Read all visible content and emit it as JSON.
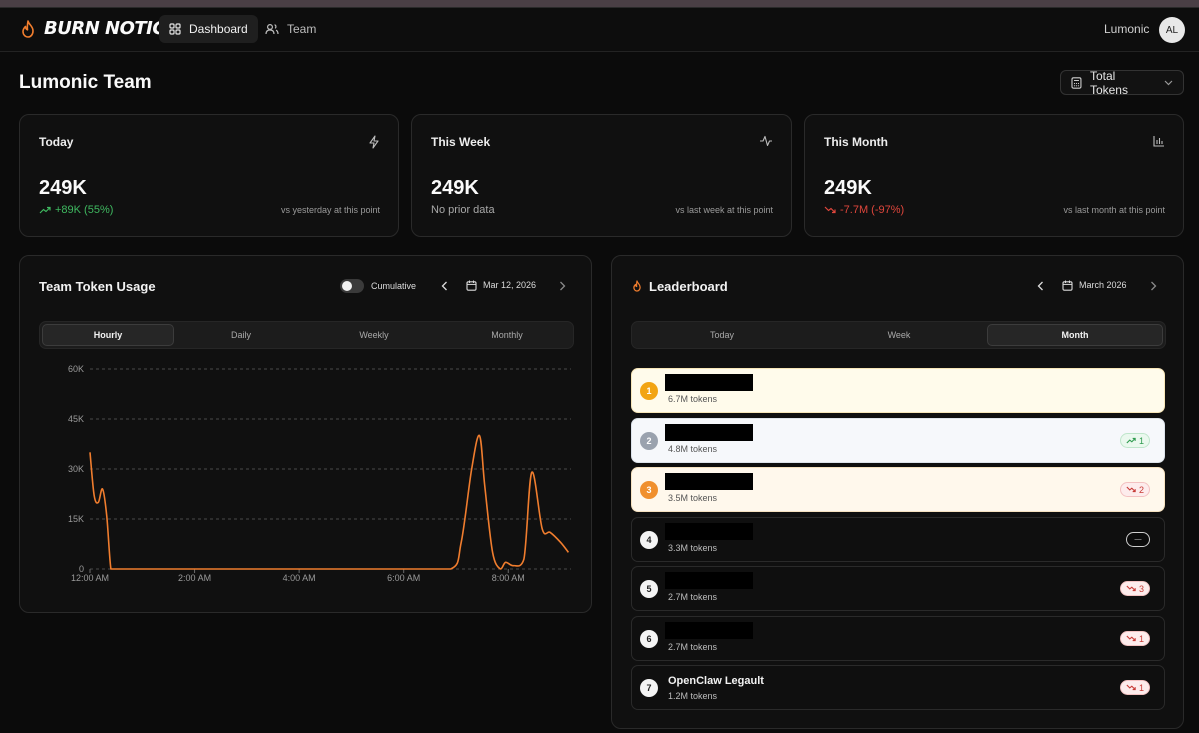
{
  "app": {
    "name": "BURN NOTICE",
    "accent": "#f07d2e"
  },
  "nav": {
    "tabs": [
      {
        "label": "Dashboard",
        "icon": "grid-icon",
        "active": true
      },
      {
        "label": "Team",
        "icon": "users-icon",
        "active": false
      }
    ],
    "user": {
      "name": "Lumonic",
      "initials": "AL"
    }
  },
  "page": {
    "title": "Lumonic Team"
  },
  "metric_select": {
    "value": "Total Tokens"
  },
  "stats": [
    {
      "label": "Today",
      "icon": "bolt-icon",
      "value": "249K",
      "delta": "+89K (55%)",
      "trend": "up",
      "note": "vs yesterday at this point"
    },
    {
      "label": "This Week",
      "icon": "activity-icon",
      "value": "249K",
      "delta": "No prior data",
      "trend": "none",
      "note": "vs last week at this point"
    },
    {
      "label": "This Month",
      "icon": "bar-chart-icon",
      "value": "249K",
      "delta": "-7.7M (-97%)",
      "trend": "down",
      "note": "vs last month at this point"
    }
  ],
  "usage": {
    "title": "Team Token Usage",
    "cumulative_label": "Cumulative",
    "cumulative_on": false,
    "date": "Mar 12, 2026",
    "tabs": [
      "Hourly",
      "Daily",
      "Weekly",
      "Monthly"
    ],
    "active_tab": "Hourly"
  },
  "chart_data": {
    "type": "line",
    "series_color": "#f07d2e",
    "grid": true,
    "x_unit": "hours since 12:00 AM",
    "xlim": [
      0,
      9.2
    ],
    "ylim": [
      0,
      60000
    ],
    "y_ticks": [
      0,
      15000,
      30000,
      45000,
      60000
    ],
    "y_tick_labels": [
      "0",
      "15K",
      "30K",
      "45K",
      "60K"
    ],
    "x_ticks": [
      0,
      2,
      4,
      6,
      8
    ],
    "x_tick_labels": [
      "12:00 AM",
      "2:00 AM",
      "4:00 AM",
      "6:00 AM",
      "8:00 AM"
    ],
    "x": [
      0,
      0.08,
      0.16,
      0.24,
      0.32,
      0.4,
      0.48,
      0.6,
      1,
      2,
      3,
      4,
      5,
      6,
      6.9,
      7.1,
      7.3,
      7.45,
      7.55,
      7.7,
      7.85,
      7.95,
      8.1,
      8.3,
      8.45,
      8.65,
      8.8,
      9.0,
      9.15
    ],
    "y": [
      35000,
      22000,
      20000,
      24000,
      16000,
      0,
      0,
      0,
      0,
      0,
      0,
      0,
      0,
      0,
      0,
      8000,
      30000,
      40000,
      25000,
      5000,
      0,
      2000,
      1000,
      3000,
      29000,
      12000,
      11000,
      8000,
      5000
    ]
  },
  "leaderboard": {
    "title": "Leaderboard",
    "period_label": "March 2026",
    "tabs": [
      "Today",
      "Week",
      "Month"
    ],
    "active_tab": "Month",
    "rows": [
      {
        "rank": "1",
        "name": "",
        "tokens": "6.7M tokens",
        "change": "",
        "direction": "none",
        "style": "gold"
      },
      {
        "rank": "2",
        "name": "",
        "tokens": "4.8M tokens",
        "change": "1",
        "direction": "up",
        "style": "silver"
      },
      {
        "rank": "3",
        "name": "",
        "tokens": "3.5M tokens",
        "change": "2",
        "direction": "down",
        "style": "bronze"
      },
      {
        "rank": "4",
        "name": "",
        "tokens": "3.3M tokens",
        "change": "—",
        "direction": "same",
        "style": "dark"
      },
      {
        "rank": "5",
        "name": "",
        "tokens": "2.7M tokens",
        "change": "3",
        "direction": "down",
        "style": "dark"
      },
      {
        "rank": "6",
        "name": "",
        "tokens": "2.7M tokens",
        "change": "1",
        "direction": "down",
        "style": "dark"
      },
      {
        "rank": "7",
        "name": "OpenClaw Legault",
        "tokens": "1.2M tokens",
        "change": "1",
        "direction": "down",
        "style": "dark"
      }
    ]
  }
}
